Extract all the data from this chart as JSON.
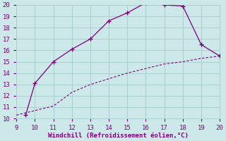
{
  "line1_x": [
    9.5,
    10,
    11,
    12,
    13,
    14,
    15,
    16,
    17,
    18,
    19,
    20
  ],
  "line1_y": [
    10.3,
    13.1,
    15.0,
    16.1,
    17.0,
    18.6,
    19.3,
    20.2,
    20.0,
    19.9,
    16.5,
    15.5
  ],
  "line2_x": [
    9,
    10,
    11,
    12,
    13,
    14,
    15,
    16,
    17,
    18,
    19,
    20
  ],
  "line2_y": [
    10.3,
    10.7,
    11.1,
    12.3,
    13.0,
    13.5,
    14.0,
    14.4,
    14.8,
    15.0,
    15.3,
    15.5
  ],
  "line_color": "#7b007b",
  "bg_color": "#cce8e8",
  "grid_color": "#aacece",
  "xlabel": "Windchill (Refroidissement éolien,°C)",
  "xlim": [
    9,
    20
  ],
  "ylim": [
    10,
    20
  ],
  "xticks": [
    9,
    10,
    11,
    12,
    13,
    14,
    15,
    16,
    17,
    18,
    19,
    20
  ],
  "yticks": [
    10,
    11,
    12,
    13,
    14,
    15,
    16,
    17,
    18,
    19,
    20
  ],
  "tick_color": "#7b007b",
  "font_size": 6.5
}
